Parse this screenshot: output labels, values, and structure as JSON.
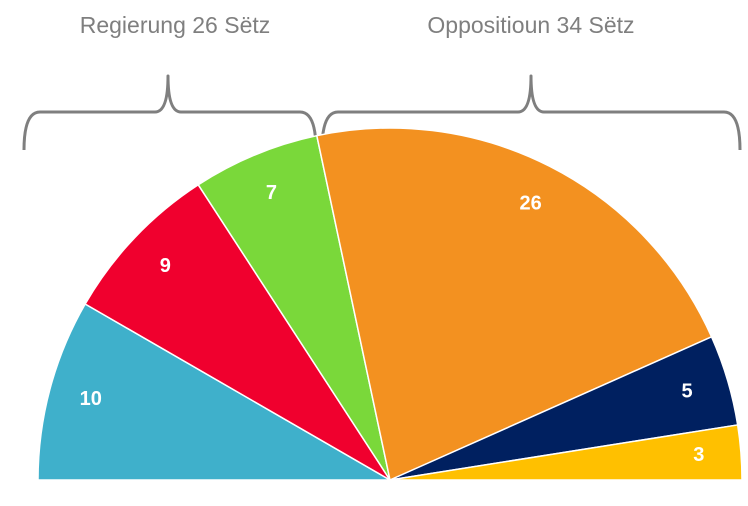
{
  "chart_data": {
    "type": "pie",
    "semicircle": true,
    "values": [
      10,
      9,
      7,
      26,
      5,
      3
    ],
    "colors": [
      "#3fb0cb",
      "#f0002e",
      "#7ad83a",
      "#f39120",
      "#002060",
      "#ffc000"
    ],
    "annotations": [
      "Regierung 26 Sëtz",
      "Oppositioun 34 Sëtz"
    ]
  }
}
